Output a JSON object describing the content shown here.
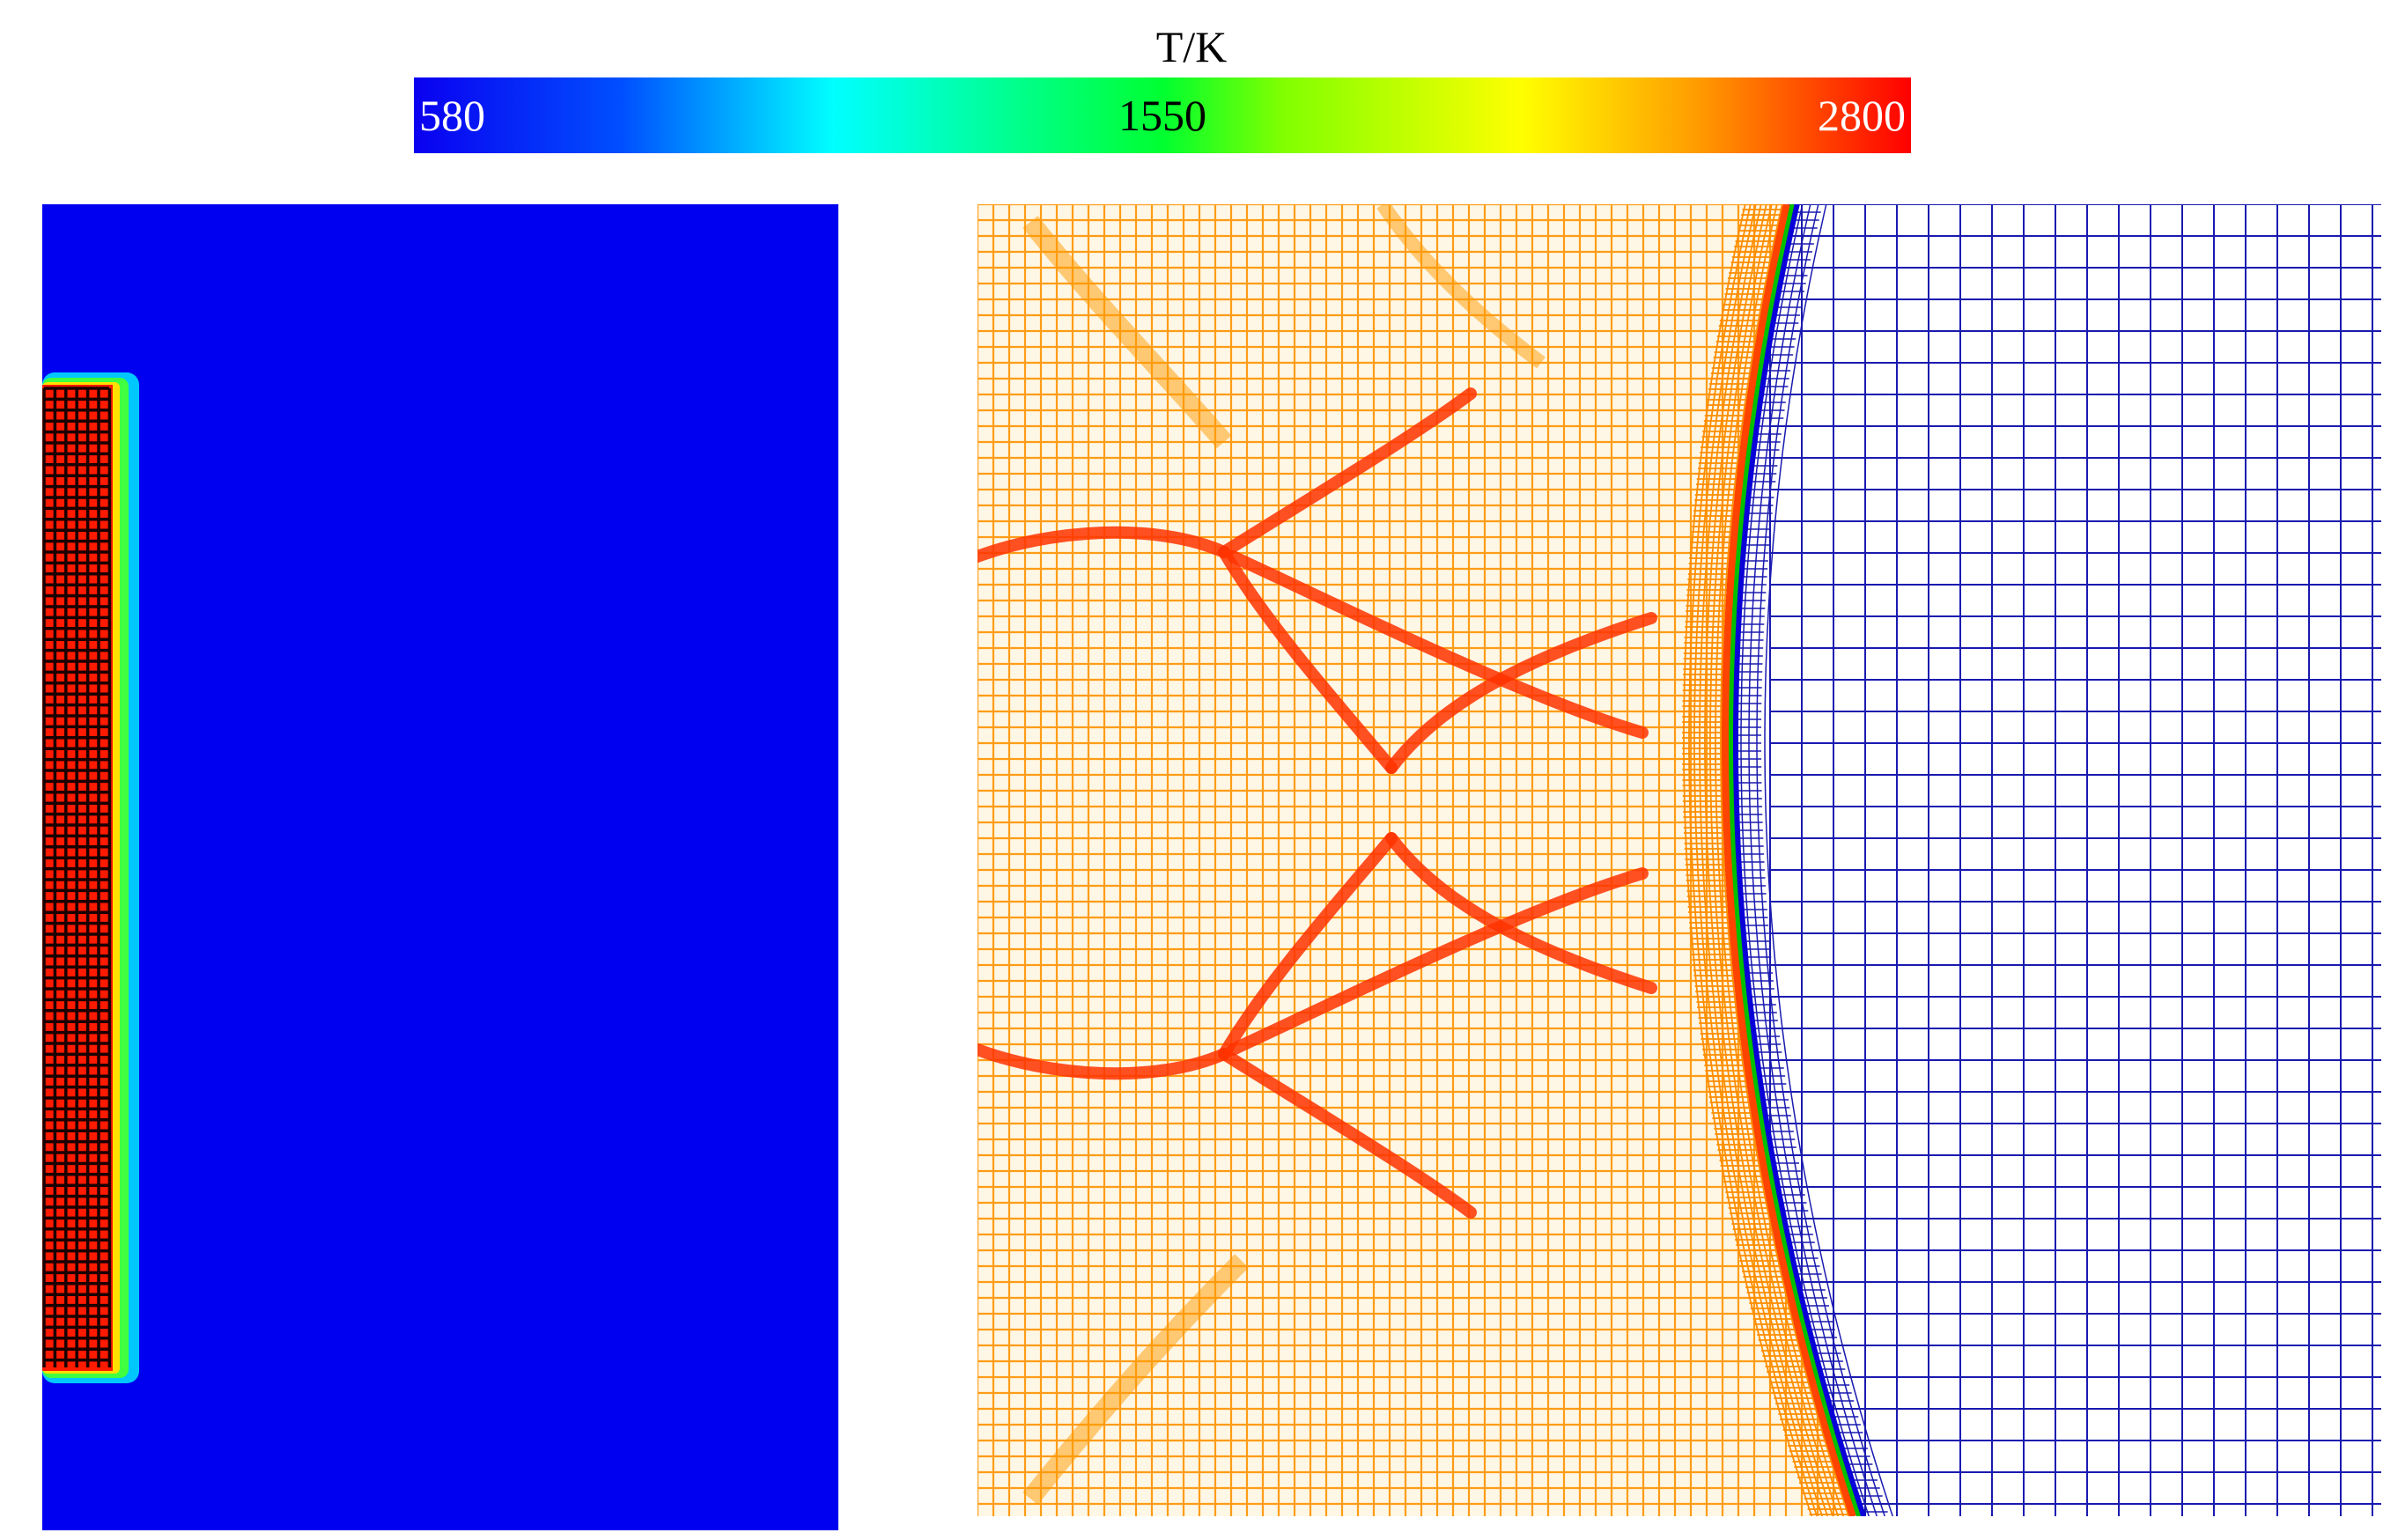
{
  "colorbar": {
    "title": "T/K",
    "min_label": "580",
    "mid_label": "1550",
    "max_label": "2800",
    "stops": [
      "#0a00f0",
      "#0050ff",
      "#00ffff",
      "#00ff30",
      "#80ff00",
      "#ffff00",
      "#ff9900",
      "#ff0000"
    ]
  },
  "left_panel": {
    "background": "#0000f0",
    "strip_fill": "#ff1a00",
    "strip_grid": "#1a0000",
    "halo_outer": "#00c8ff",
    "halo_mid": "#40ff40",
    "halo_inner": "#ffe000"
  },
  "right_panel": {
    "burnt_fill": "#ffffff",
    "burnt_grid": "#ff9a1a",
    "fine_grid": "#ff8a00",
    "ridge_color": "#ff3300",
    "shock_color": "#0a00d8",
    "unburnt_grid": "#1a1ab0"
  }
}
